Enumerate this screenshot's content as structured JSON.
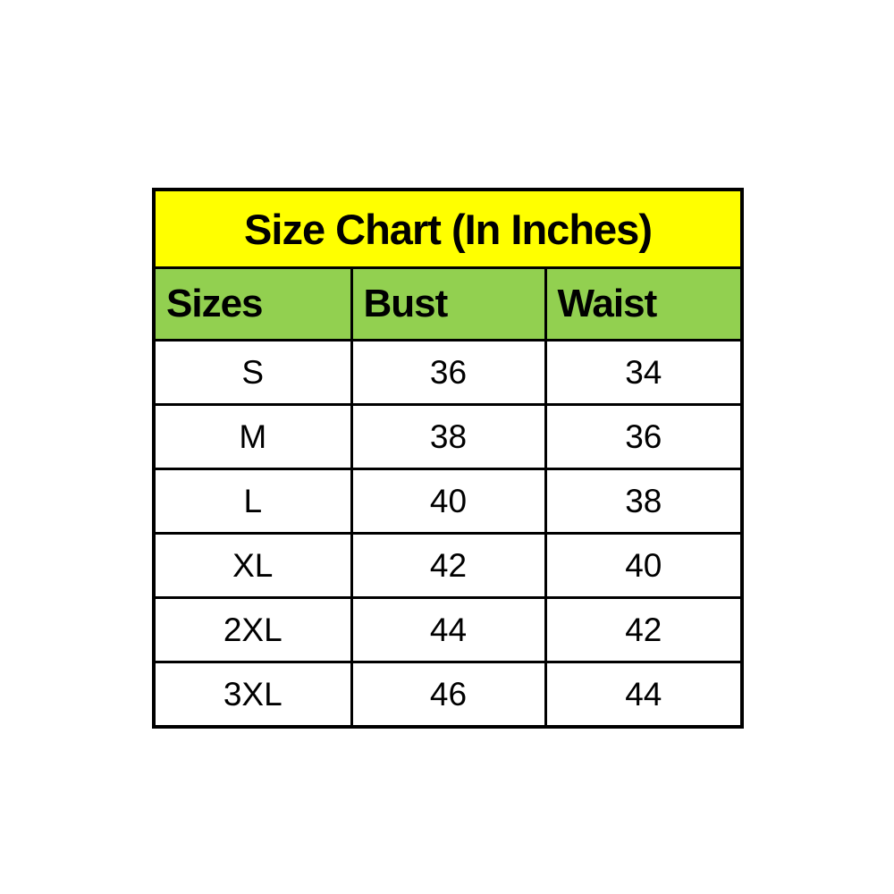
{
  "chart_data": {
    "type": "table",
    "title": "Size Chart (In Inches)",
    "columns": [
      "Sizes",
      "Bust",
      "Waist"
    ],
    "rows": [
      [
        "S",
        "36",
        "34"
      ],
      [
        "M",
        "38",
        "36"
      ],
      [
        "L",
        "40",
        "38"
      ],
      [
        "XL",
        "42",
        "40"
      ],
      [
        "2XL",
        "44",
        "42"
      ],
      [
        "3XL",
        "46",
        "44"
      ]
    ],
    "colors": {
      "title_background": "#FFFF00",
      "header_background": "#92D050",
      "border": "#000000",
      "text": "#000000",
      "page_background": "#FFFFFF"
    },
    "layout": {
      "title_align": "center",
      "header_align": "left",
      "body_align": "center"
    }
  }
}
